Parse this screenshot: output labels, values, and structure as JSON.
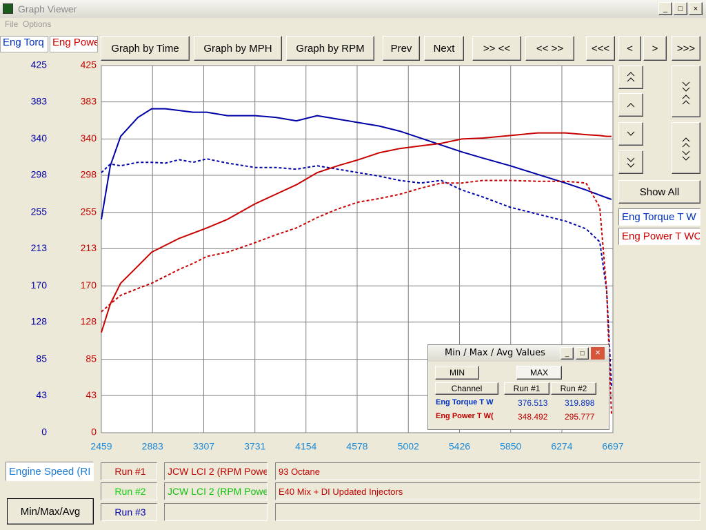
{
  "window": {
    "title": "Graph Viewer",
    "menu": [
      "File",
      "Options"
    ]
  },
  "channel_tabs": [
    "Eng Torq",
    "Eng Powe"
  ],
  "toolbar": [
    "Graph by Time",
    "Graph by MPH",
    "Graph by RPM",
    "Prev",
    "Next",
    ">> <<",
    "<< >>",
    "<<<",
    "<",
    ">",
    ">>>"
  ],
  "side_panel": {
    "show_all": "Show All",
    "channels": [
      "Eng Torque T W",
      "Eng Power T WC"
    ]
  },
  "chart_data": {
    "type": "line",
    "x": [
      2459,
      2533,
      2619,
      2762,
      2876,
      2990,
      3104,
      3219,
      3333,
      3504,
      3733,
      3904,
      4075,
      4247,
      4418,
      4589,
      4760,
      4932,
      5103,
      5275,
      5446,
      5617,
      5846,
      6074,
      6303,
      6474,
      6588,
      6645,
      6685
    ],
    "series": [
      {
        "name": "Eng Torque T W",
        "color": "#0000a8",
        "linestyle": "solid",
        "values": [
          247,
          309,
          343,
          365,
          375,
          375,
          373,
          371,
          371,
          367,
          367,
          365,
          361,
          367,
          363,
          359,
          355,
          349,
          341,
          333,
          325,
          318,
          309,
          299,
          289,
          281,
          275,
          272,
          270
        ]
      },
      {
        "name": "Eng Torque T W",
        "color": "#0000a8",
        "linestyle": "dashed",
        "values": [
          301,
          311,
          309,
          313,
          313,
          312,
          316,
          313,
          317,
          312,
          307,
          307,
          305,
          309,
          305,
          301,
          297,
          292,
          289,
          292,
          281,
          273,
          261,
          253,
          245,
          236,
          221,
          165,
          54
        ]
      },
      {
        "name": "Eng Power T WC",
        "color": "#c80000",
        "linestyle": "solid",
        "axis": "y2",
        "values": [
          116,
          149,
          173,
          193,
          209,
          217,
          225,
          231,
          237,
          247,
          265,
          276,
          287,
          301,
          309,
          316,
          324,
          329,
          332,
          335,
          340,
          341,
          344,
          347,
          347,
          345,
          344,
          343,
          343
        ]
      },
      {
        "name": "Eng Power T WC",
        "color": "#c80000",
        "linestyle": "dashed",
        "axis": "y2",
        "values": [
          140,
          149,
          159,
          167,
          173,
          181,
          189,
          196,
          204,
          209,
          220,
          229,
          237,
          249,
          259,
          267,
          271,
          276,
          283,
          289,
          289,
          292,
          292,
          291,
          291,
          289,
          261,
          165,
          22
        ]
      }
    ],
    "xlim": [
      2459,
      6697
    ],
    "xticks": [
      2459,
      2883,
      3307,
      3731,
      4154,
      4578,
      5002,
      5426,
      5850,
      6274,
      6697
    ],
    "ylim": [
      0,
      425
    ],
    "yticks": [
      0,
      43,
      85,
      128,
      170,
      213,
      255,
      298,
      340,
      383,
      425
    ],
    "y2lim": [
      0,
      425
    ],
    "y2ticks": [
      0,
      43,
      85,
      128,
      170,
      213,
      255,
      298,
      340,
      383,
      425
    ],
    "grid": true
  },
  "stats_window": {
    "title": "Min / Max / Avg Values",
    "buttons": [
      "MIN",
      "MAX"
    ],
    "header": [
      "Channel",
      "Run #1",
      "Run #2"
    ],
    "rows": [
      [
        "Eng Torque T W",
        "376.513",
        "319.898"
      ],
      [
        "Eng Power T W(",
        "348.492",
        "295.777"
      ]
    ]
  },
  "bottom": {
    "x_channel": "Engine Speed (RI",
    "runs": [
      {
        "label": "Run #1",
        "file": "JCW LCI 2  (RPM Powe",
        "note": "93 Octane"
      },
      {
        "label": "Run #2",
        "file": "JCW LCI 2  (RPM Powe",
        "note": "E40 Mix + DI Updated Injectors"
      },
      {
        "label": "Run #3"
      }
    ],
    "button": "Min/Max/Avg"
  }
}
